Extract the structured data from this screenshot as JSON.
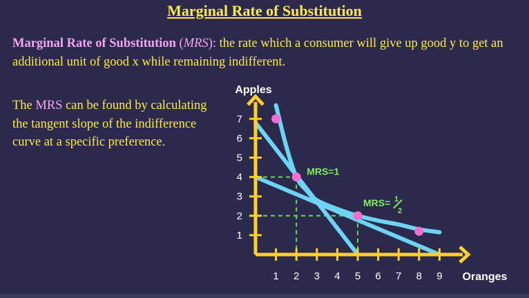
{
  "title": "Marginal Rate of Substitution",
  "definition": {
    "term": "Marginal Rate of Substitution",
    "open": " (",
    "abbr": "MRS",
    "close": "):",
    "text": " the rate which a consumer will give up good y to get an additional unit of good x while remaining indifferent."
  },
  "description": {
    "before": "The ",
    "highlight": "MRS",
    "after": " can be found by calculating the tangent slope of the indifference curve at a specific preference."
  },
  "colors": {
    "background": "#2b2a4c",
    "title_text": "#fde94a",
    "highlight_text": "#f4a4f4",
    "axes": "#fdd02a",
    "curve": "#6fd3f3",
    "points": "#f26fd0",
    "dashed_guides": "#5fe24a",
    "annotation": "#7ff05a"
  },
  "chart_data": {
    "type": "line",
    "xlabel": "Oranges",
    "ylabel": "Apples",
    "x_ticks": [
      "1",
      "2",
      "3",
      "4",
      "5",
      "6",
      "7",
      "8",
      "9"
    ],
    "y_ticks": [
      "1",
      "2",
      "3",
      "4",
      "5",
      "6",
      "7"
    ],
    "xlim": [
      0,
      10
    ],
    "ylim": [
      0,
      7.8
    ],
    "indifference_curve": [
      {
        "x": 1.0,
        "y": 7.7
      },
      {
        "x": 1.5,
        "y": 5.6
      },
      {
        "x": 2.0,
        "y": 4.0
      },
      {
        "x": 2.5,
        "y": 3.3
      },
      {
        "x": 3.0,
        "y": 2.8
      },
      {
        "x": 4.0,
        "y": 2.35
      },
      {
        "x": 5.0,
        "y": 2.0
      },
      {
        "x": 6.0,
        "y": 1.75
      },
      {
        "x": 7.0,
        "y": 1.55
      },
      {
        "x": 8.0,
        "y": 1.3
      },
      {
        "x": 9.0,
        "y": 1.15
      }
    ],
    "points": [
      {
        "x": 1.0,
        "y": 7.0
      },
      {
        "x": 2.0,
        "y": 4.0
      },
      {
        "x": 5.0,
        "y": 2.0
      },
      {
        "x": 8.0,
        "y": 1.2
      }
    ],
    "tangent_lines": [
      {
        "from": {
          "x": 0,
          "y": 6.8
        },
        "to": {
          "x": 5.0,
          "y": 0
        }
      },
      {
        "from": {
          "x": 0,
          "y": 4.0
        },
        "to": {
          "x": 9.0,
          "y": 0
        }
      }
    ],
    "guides": [
      {
        "point": {
          "x": 2.0,
          "y": 4.0
        }
      },
      {
        "point": {
          "x": 5.0,
          "y": 2.0
        }
      }
    ],
    "annotations": [
      {
        "label": "MRS=1",
        "at": {
          "x": 2.0,
          "y": 4.0
        }
      },
      {
        "label": "MRS=",
        "numerator": "1",
        "denominator": "2",
        "at": {
          "x": 5.0,
          "y": 2.0
        }
      }
    ]
  }
}
